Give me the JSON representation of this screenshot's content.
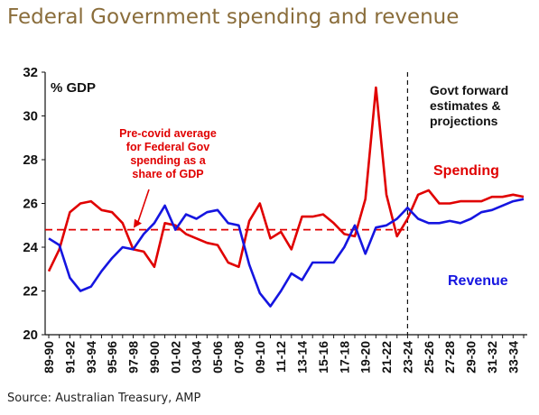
{
  "title": "Federal Government spending and revenue",
  "source": "Source: Australian Treasury, AMP",
  "chart_data": {
    "type": "line",
    "ylabel": "% GDP",
    "ylim": [
      20,
      32
    ],
    "yticks": [
      20,
      22,
      24,
      26,
      28,
      30,
      32
    ],
    "categories": [
      "89-90",
      "90-91",
      "91-92",
      "92-93",
      "93-94",
      "94-95",
      "95-96",
      "96-97",
      "97-98",
      "98-99",
      "99-00",
      "00-01",
      "01-02",
      "02-03",
      "03-04",
      "04-05",
      "05-06",
      "06-07",
      "07-08",
      "08-09",
      "09-10",
      "10-11",
      "11-12",
      "12-13",
      "13-14",
      "14-15",
      "15-16",
      "16-17",
      "17-18",
      "18-19",
      "19-20",
      "20-21",
      "21-22",
      "22-23",
      "23-24",
      "24-25",
      "25-26",
      "26-27",
      "27-28",
      "28-29",
      "29-30",
      "30-31",
      "31-32",
      "32-33",
      "33-34",
      "34-35"
    ],
    "xtick_labels": [
      "89-90",
      "91-92",
      "93-94",
      "95-96",
      "97-98",
      "99-00",
      "01-02",
      "03-04",
      "05-06",
      "07-08",
      "09-10",
      "11-12",
      "13-14",
      "15-16",
      "17-18",
      "19-20",
      "21-22",
      "23-24",
      "25-26",
      "27-28",
      "29-30",
      "31-32",
      "33-34"
    ],
    "series": [
      {
        "name": "Spending",
        "color": "#e00000",
        "values": [
          22.9,
          23.9,
          25.6,
          26.0,
          26.1,
          25.7,
          25.6,
          25.1,
          23.9,
          23.8,
          23.1,
          25.1,
          25.0,
          24.6,
          24.4,
          24.2,
          24.1,
          23.3,
          23.1,
          25.2,
          26.0,
          24.4,
          24.7,
          23.9,
          25.4,
          25.4,
          25.5,
          25.1,
          24.6,
          24.5,
          26.2,
          31.3,
          26.4,
          24.5,
          25.3,
          26.4,
          26.6,
          26.0,
          26.0,
          26.1,
          26.1,
          26.1,
          26.3,
          26.3,
          26.4,
          26.3
        ]
      },
      {
        "name": "Revenue",
        "color": "#1515e0",
        "values": [
          24.4,
          24.1,
          22.6,
          22.0,
          22.2,
          22.9,
          23.5,
          24.0,
          23.9,
          24.6,
          25.1,
          25.9,
          24.8,
          25.5,
          25.3,
          25.6,
          25.7,
          25.1,
          25.0,
          23.2,
          21.9,
          21.3,
          22.0,
          22.8,
          22.5,
          23.3,
          23.3,
          23.3,
          24.0,
          25.0,
          23.7,
          24.9,
          25.0,
          25.3,
          25.8,
          25.3,
          25.1,
          25.1,
          25.2,
          25.1,
          25.3,
          25.6,
          25.7,
          25.9,
          26.1,
          26.2
        ]
      }
    ],
    "reference_line": {
      "label": "Pre-covid average for Federal Gov spending as a share of GDP",
      "value": 24.8,
      "color": "#e00000",
      "style": "dashed"
    },
    "divider": {
      "label": "Govt forward estimates & projections",
      "at": "23-24",
      "style": "dashed"
    },
    "annotation_lines": {
      "precovid": [
        "Pre-covid average",
        "for Federal Gov",
        "spending as a",
        "share of GDP"
      ],
      "forward": [
        "Govt forward",
        "estimates &",
        "projections"
      ]
    },
    "grid": false
  }
}
